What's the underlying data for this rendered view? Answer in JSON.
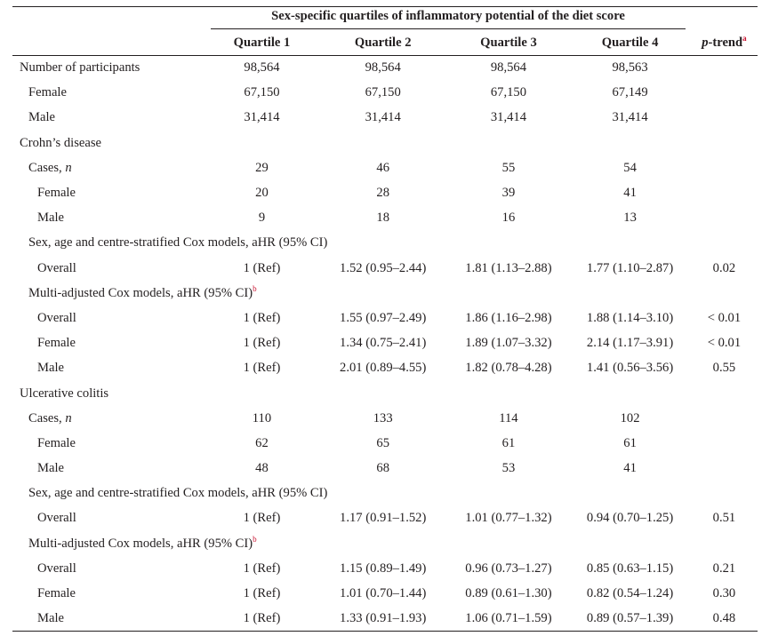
{
  "header": {
    "span_title": "Sex-specific quartiles of inflammatory potential of the diet score",
    "q1": "Quartile 1",
    "q2": "Quartile 2",
    "q3": "Quartile 3",
    "q4": "Quartile 4",
    "ptrend_p": "p",
    "ptrend_rest": "-trend",
    "ptrend_sup": "a"
  },
  "rows": [
    {
      "label": "Number of participants",
      "q1": "98,564",
      "q2": "98,564",
      "q3": "98,564",
      "q4": "98,563",
      "pt": ""
    },
    {
      "label": "Female",
      "q1": "67,150",
      "q2": "67,150",
      "q3": "67,150",
      "q4": "67,149",
      "pt": ""
    },
    {
      "label": "Male",
      "q1": "31,414",
      "q2": "31,414",
      "q3": "31,414",
      "q4": "31,414",
      "pt": ""
    },
    {
      "label": "Crohn’s disease",
      "q1": "",
      "q2": "",
      "q3": "",
      "q4": "",
      "pt": ""
    },
    {
      "label": "Cases, ",
      "label_ital": "n",
      "q1": "29",
      "q2": "46",
      "q3": "55",
      "q4": "54",
      "pt": ""
    },
    {
      "label": "Female",
      "q1": "20",
      "q2": "28",
      "q3": "39",
      "q4": "41",
      "pt": ""
    },
    {
      "label": "Male",
      "q1": "9",
      "q2": "18",
      "q3": "16",
      "q4": "13",
      "pt": ""
    },
    {
      "label": "Sex, age and centre-stratified Cox models, aHR (95% CI)",
      "q1": "",
      "q2": "",
      "q3": "",
      "q4": "",
      "pt": ""
    },
    {
      "label": "Overall",
      "q1": "1 (Ref)",
      "q2": "1.52 (0.95–2.44)",
      "q3": "1.81 (1.13–2.88)",
      "q4": "1.77 (1.10–2.87)",
      "pt": "0.02"
    },
    {
      "label": "Multi-adjusted Cox models, aHR (95% CI)",
      "label_sup": "b",
      "q1": "",
      "q2": "",
      "q3": "",
      "q4": "",
      "pt": ""
    },
    {
      "label": "Overall",
      "q1": "1 (Ref)",
      "q2": "1.55 (0.97–2.49)",
      "q3": "1.86 (1.16–2.98)",
      "q4": "1.88 (1.14–3.10)",
      "pt": "< 0.01"
    },
    {
      "label": "Female",
      "q1": "1 (Ref)",
      "q2": "1.34 (0.75–2.41)",
      "q3": "1.89 (1.07–3.32)",
      "q4": "2.14 (1.17–3.91)",
      "pt": "< 0.01"
    },
    {
      "label": "Male",
      "q1": "1 (Ref)",
      "q2": "2.01 (0.89–4.55)",
      "q3": "1.82 (0.78–4.28)",
      "q4": "1.41 (0.56–3.56)",
      "pt": "0.55"
    },
    {
      "label": "Ulcerative colitis",
      "q1": "",
      "q2": "",
      "q3": "",
      "q4": "",
      "pt": ""
    },
    {
      "label": "Cases, ",
      "label_ital": "n",
      "q1": "110",
      "q2": "133",
      "q3": "114",
      "q4": "102",
      "pt": ""
    },
    {
      "label": "Female",
      "q1": "62",
      "q2": "65",
      "q3": "61",
      "q4": "61",
      "pt": ""
    },
    {
      "label": "Male",
      "q1": "48",
      "q2": "68",
      "q3": "53",
      "q4": "41",
      "pt": ""
    },
    {
      "label": "Sex, age and centre-stratified Cox models, aHR (95% CI)",
      "q1": "",
      "q2": "",
      "q3": "",
      "q4": "",
      "pt": ""
    },
    {
      "label": "Overall",
      "q1": "1 (Ref)",
      "q2": "1.17 (0.91–1.52)",
      "q3": "1.01 (0.77–1.32)",
      "q4": "0.94 (0.70–1.25)",
      "pt": "0.51"
    },
    {
      "label": "Multi-adjusted Cox models, aHR (95% CI)",
      "label_sup": "b",
      "q1": "",
      "q2": "",
      "q3": "",
      "q4": "",
      "pt": ""
    },
    {
      "label": "Overall",
      "q1": "1 (Ref)",
      "q2": "1.15 (0.89–1.49)",
      "q3": "0.96 (0.73–1.27)",
      "q4": "0.85 (0.63–1.15)",
      "pt": "0.21"
    },
    {
      "label": "Female",
      "q1": "1 (Ref)",
      "q2": "1.01 (0.70–1.44)",
      "q3": "0.89 (0.61–1.30)",
      "q4": "0.82 (0.54–1.24)",
      "pt": "0.30"
    },
    {
      "label": "Male",
      "q1": "1 (Ref)",
      "q2": "1.33 (0.91–1.93)",
      "q3": "1.06 (0.71–1.59)",
      "q4": "0.89 (0.57–1.39)",
      "pt": "0.48"
    }
  ]
}
